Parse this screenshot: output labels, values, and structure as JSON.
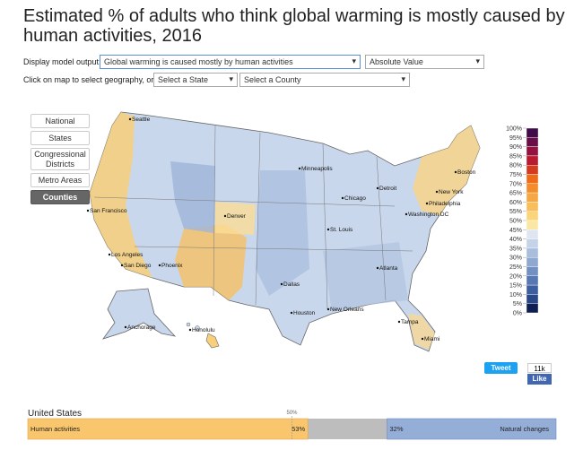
{
  "header": {
    "title": "Estimated % of adults who think global warming is mostly caused by human activities, 2016"
  },
  "controls": {
    "output_label": "Display model output:",
    "output_select": "Global warming is caused mostly by human activities",
    "value_select": "Absolute Value",
    "geo_label": "Click on map to select geography, or:",
    "state_select": "Select a State",
    "county_select": "Select a County"
  },
  "geography_buttons": [
    "National",
    "States",
    "Congressional Districts",
    "Metro Areas",
    "Counties"
  ],
  "active_button": 4,
  "cities": [
    "Seattle",
    "San Francisco",
    "Los Angeles",
    "San Diego",
    "Phoenix",
    "Denver",
    "Minneapolis",
    "Chicago",
    "Detroit",
    "St. Louis",
    "Dallas",
    "Houston",
    "New Orleans",
    "Atlanta",
    "Tampa",
    "Miami",
    "Philadelphia",
    "New York",
    "Boston",
    "Washington DC",
    "Anchorage",
    "Honolulu"
  ],
  "legend": {
    "ticks": [
      {
        "value": 100,
        "label": "100%"
      },
      {
        "value": 95,
        "label": "95%"
      },
      {
        "value": 90,
        "label": "90%"
      },
      {
        "value": 85,
        "label": "85%"
      },
      {
        "value": 80,
        "label": "80%"
      },
      {
        "value": 75,
        "label": "75%"
      },
      {
        "value": 70,
        "label": "70%"
      },
      {
        "value": 65,
        "label": "65%"
      },
      {
        "value": 60,
        "label": "60%"
      },
      {
        "value": 55,
        "label": "55%"
      },
      {
        "value": 50,
        "label": "50%"
      },
      {
        "value": 45,
        "label": "45%"
      },
      {
        "value": 40,
        "label": "40%"
      },
      {
        "value": 35,
        "label": "35%"
      },
      {
        "value": 30,
        "label": "30%"
      },
      {
        "value": 25,
        "label": "25%"
      },
      {
        "value": 20,
        "label": "20%"
      },
      {
        "value": 15,
        "label": "15%"
      },
      {
        "value": 10,
        "label": "10%"
      },
      {
        "value": 5,
        "label": "5%"
      },
      {
        "value": 0,
        "label": "0%"
      }
    ],
    "colors": [
      "#3f0b48",
      "#6a0f45",
      "#93123e",
      "#b81a2f",
      "#d43a1f",
      "#ee6b1a",
      "#f48c2c",
      "#f6a642",
      "#f8be5c",
      "#fbd57c",
      "#fbe7a4",
      "#dfe6f2",
      "#c5d3e8",
      "#a9bedd",
      "#8ea8d0",
      "#7290c2",
      "#5878b3",
      "#3e5f9f",
      "#2a4788",
      "#0f1f52"
    ]
  },
  "social": {
    "tweet": "Tweet",
    "count": "11k",
    "like": "Like"
  },
  "summary": {
    "title": "United States",
    "midpoint": {
      "value": 50,
      "label": "50%"
    },
    "bars": [
      {
        "name": "Human activities",
        "value": 53,
        "label": "53%",
        "color": "#f9c66e"
      },
      {
        "name": "Natural changes",
        "value": 32,
        "label": "32%",
        "color": "#95aed8"
      }
    ],
    "remainder_color": "#bdbdbd"
  }
}
